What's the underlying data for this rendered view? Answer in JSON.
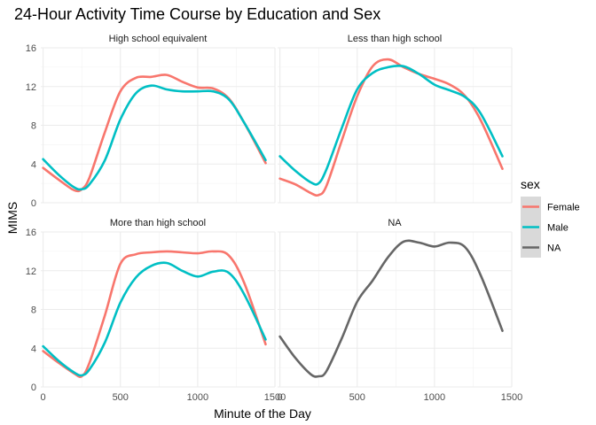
{
  "chart_data": {
    "type": "line",
    "title": "24-Hour Activity Time Course by Education and Sex",
    "xlabel": "Minute of the Day",
    "ylabel": "MIMS",
    "xlim": [
      -15,
      1500
    ],
    "ylim": [
      0,
      16
    ],
    "x_ticks": [
      "0",
      "500",
      "1000",
      "1500"
    ],
    "y_ticks": [
      "0",
      "4",
      "8",
      "12",
      "16"
    ],
    "grid": true,
    "legend": {
      "title": "sex",
      "position": "right",
      "entries": [
        {
          "label": "Female",
          "color": "#F8766D"
        },
        {
          "label": "Male",
          "color": "#00BFC4"
        },
        {
          "label": "NA",
          "color": "#666666"
        }
      ]
    },
    "panels": [
      {
        "label": "High school equivalent",
        "series": [
          {
            "name": "Female",
            "color": "#F8766D",
            "x": [
              0,
              100,
              200,
              250,
              300,
              400,
              500,
              600,
              700,
              800,
              900,
              1000,
              1100,
              1200,
              1300,
              1440
            ],
            "y": [
              3.6,
              2.4,
              1.3,
              1.4,
              2.6,
              7.3,
              11.5,
              12.9,
              13.0,
              13.2,
              12.5,
              11.9,
              11.8,
              10.8,
              8.3,
              4.1
            ]
          },
          {
            "name": "Male",
            "color": "#00BFC4",
            "x": [
              0,
              100,
              200,
              250,
              300,
              400,
              500,
              600,
              700,
              800,
              900,
              1000,
              1100,
              1200,
              1300,
              1440
            ],
            "y": [
              4.5,
              2.9,
              1.6,
              1.4,
              1.9,
              4.4,
              8.6,
              11.3,
              12.1,
              11.7,
              11.5,
              11.5,
              11.5,
              10.7,
              8.3,
              4.4
            ]
          }
        ]
      },
      {
        "label": "Less than high school",
        "series": [
          {
            "name": "Female",
            "color": "#F8766D",
            "x": [
              0,
              100,
              200,
              250,
              300,
              400,
              500,
              600,
              700,
              800,
              900,
              1000,
              1100,
              1200,
              1300,
              1440
            ],
            "y": [
              2.5,
              1.9,
              1.0,
              0.8,
              1.7,
              6.4,
              11.0,
              14.1,
              14.8,
              14.0,
              13.3,
              12.8,
              12.2,
              11.0,
              8.5,
              3.5
            ]
          },
          {
            "name": "Male",
            "color": "#00BFC4",
            "x": [
              0,
              100,
              200,
              250,
              300,
              400,
              500,
              600,
              700,
              800,
              900,
              1000,
              1100,
              1200,
              1300,
              1440
            ],
            "y": [
              4.8,
              3.3,
              2.1,
              2.0,
              3.4,
              7.7,
              11.7,
              13.4,
              14.0,
              14.1,
              13.3,
              12.2,
              11.6,
              10.9,
              9.2,
              4.8
            ]
          }
        ]
      },
      {
        "label": "More than high school",
        "series": [
          {
            "name": "Female",
            "color": "#F8766D",
            "x": [
              0,
              100,
              200,
              250,
              300,
              400,
              500,
              600,
              700,
              800,
              900,
              1000,
              1100,
              1200,
              1300,
              1440
            ],
            "y": [
              3.7,
              2.5,
              1.4,
              1.1,
              2.5,
              7.4,
              12.7,
              13.7,
              13.9,
              14.0,
              13.9,
              13.8,
              14.0,
              13.6,
              10.8,
              4.4
            ]
          },
          {
            "name": "Male",
            "color": "#00BFC4",
            "x": [
              0,
              100,
              200,
              250,
              300,
              400,
              500,
              600,
              700,
              800,
              900,
              1000,
              1100,
              1200,
              1300,
              1440
            ],
            "y": [
              4.2,
              2.7,
              1.5,
              1.2,
              1.8,
              4.6,
              8.7,
              11.3,
              12.5,
              12.8,
              12.0,
              11.4,
              11.9,
              11.8,
              9.6,
              4.9
            ]
          }
        ]
      },
      {
        "label": "NA",
        "series": [
          {
            "name": "NA",
            "color": "#666666",
            "x": [
              0,
              100,
              200,
              250,
              300,
              400,
              500,
              600,
              700,
              800,
              900,
              1000,
              1100,
              1200,
              1300,
              1440
            ],
            "y": [
              5.2,
              3.0,
              1.3,
              1.1,
              1.6,
              5.0,
              8.8,
              11.0,
              13.4,
              15.0,
              14.9,
              14.5,
              14.9,
              14.4,
              11.5,
              5.8
            ]
          }
        ]
      }
    ]
  }
}
